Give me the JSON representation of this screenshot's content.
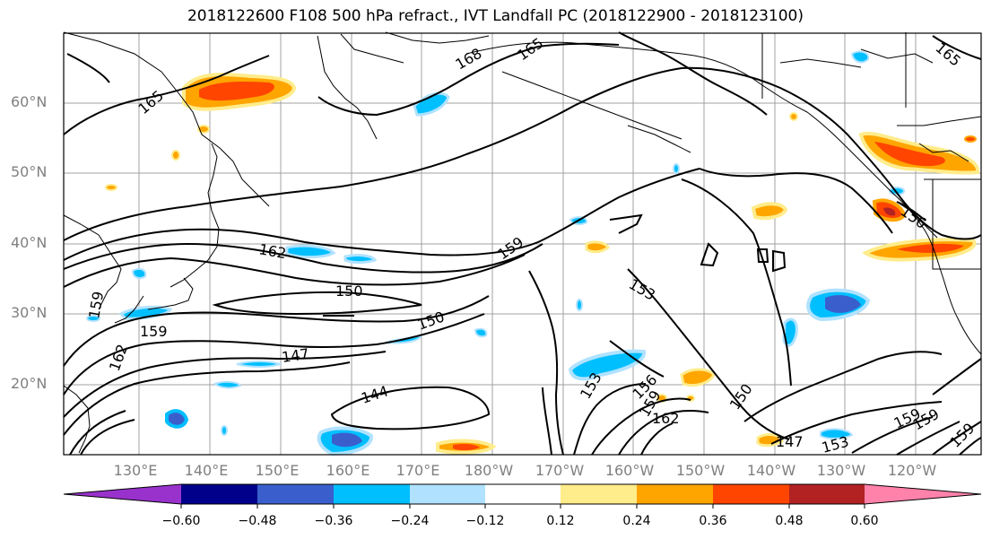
{
  "title": "2018122600 F108 500 hPa refract., IVT Landfall PC (2018122900 - 2018123100)",
  "lat_labels": [
    "60°N",
    "50°N",
    "40°N",
    "30°N",
    "20°N"
  ],
  "lon_labels": [
    "130°E",
    "140°E",
    "150°E",
    "160°E",
    "170°E",
    "180°W",
    "170°W",
    "160°W",
    "150°W",
    "140°W",
    "130°W",
    "120°W"
  ],
  "contour_levels": [
    "165",
    "168",
    "165",
    "165",
    "162",
    "159",
    "150",
    "159",
    "150",
    "147",
    "153",
    "144",
    "159",
    "162",
    "156",
    "159",
    "162",
    "150",
    "147",
    "153",
    "159",
    "159",
    "159",
    "156",
    "165"
  ],
  "colorbar": {
    "ticks": [
      "−0.60",
      "−0.48",
      "−0.36",
      "−0.24",
      "−0.12",
      "0.12",
      "0.24",
      "0.36",
      "0.48",
      "0.60"
    ],
    "colors": [
      "#9932cc",
      "#00008b",
      "#3a5fcd",
      "#00bfff",
      "#b0e2ff",
      "#ffffff",
      "#ffec8b",
      "#ffa500",
      "#ff4500",
      "#b22222",
      "#ff82ab"
    ]
  }
}
